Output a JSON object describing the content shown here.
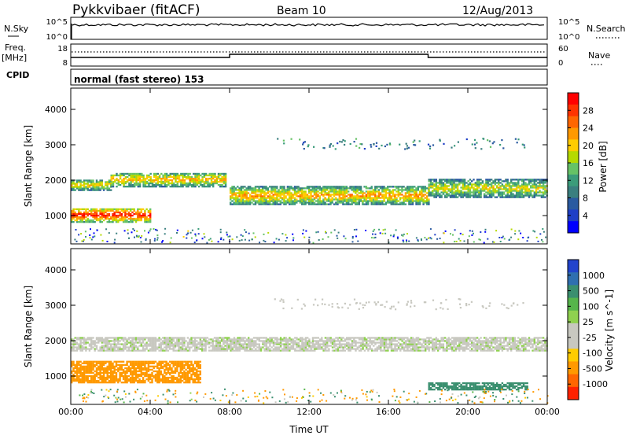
{
  "header": {
    "radar": "Pykkvibaer (fitACF)",
    "beam": "Beam 10",
    "date": "12/Aug/2013"
  },
  "panels": {
    "nsky": {
      "left_label": "N.Sky",
      "left_ticks": [
        "10^5",
        "10^0"
      ],
      "right_ticks": [
        "10^5",
        "10^0"
      ],
      "right_label": "N.Search"
    },
    "freq": {
      "left_label_top": "Freq.",
      "left_label_unit": "[MHz]",
      "left_ticks": [
        "18",
        "8"
      ],
      "right_ticks": [
        "60",
        "0"
      ],
      "right_label": "Nave"
    },
    "cpid": {
      "label": "CPID",
      "text": "normal (fast stereo) 153"
    }
  },
  "chart_data": [
    {
      "type": "heatmap",
      "name": "power",
      "ylabel": "Slant Range [km]",
      "ylim": [
        200,
        4600
      ],
      "yticks": [
        1000,
        2000,
        3000,
        4000
      ],
      "xlim": [
        0,
        24
      ],
      "xticks": [
        "00:00",
        "04:00",
        "08:00",
        "12:00",
        "16:00",
        "20:00",
        "00:00"
      ],
      "colorbar": {
        "label": "Power [dB]",
        "ticks": [
          "28",
          "24",
          "20",
          "16",
          "12",
          "8",
          "4"
        ],
        "colors": [
          "#ff0000",
          "#ff3300",
          "#ff6600",
          "#ff9900",
          "#ffcc00",
          "#b5d900",
          "#66c266",
          "#3b9c7a",
          "#3a7f7f",
          "#2a5aa0",
          "#1f3fc6",
          "#0000ff"
        ]
      },
      "bands": [
        {
          "t0": 0.0,
          "t1": 4.0,
          "r0": 800,
          "r1": 1200,
          "level": 0.95
        },
        {
          "t0": 0.0,
          "t1": 2.0,
          "r0": 1700,
          "r1": 2000,
          "level": 0.65
        },
        {
          "t0": 2.0,
          "t1": 7.8,
          "r0": 1800,
          "r1": 2200,
          "level": 0.7
        },
        {
          "t0": 8.0,
          "t1": 18.0,
          "r0": 1300,
          "r1": 1800,
          "level": 0.72
        },
        {
          "t0": 18.0,
          "t1": 24.0,
          "r0": 1500,
          "r1": 2000,
          "level": 0.6
        }
      ]
    },
    {
      "type": "heatmap",
      "name": "velocity",
      "xlabel": "Time UT",
      "ylabel": "Slant Range [km]",
      "ylim": [
        200,
        4600
      ],
      "yticks": [
        1000,
        2000,
        3000,
        4000
      ],
      "xlim": [
        0,
        24
      ],
      "xticks": [
        "00:00",
        "04:00",
        "08:00",
        "12:00",
        "16:00",
        "20:00",
        "00:00"
      ],
      "colorbar": {
        "label": "Velocity [m s^-1]",
        "ticks": [
          "1000",
          "500",
          "100",
          "25",
          "-25",
          "-100",
          "-500",
          "-1000"
        ],
        "colors": [
          "#2244cc",
          "#2f6fb0",
          "#3a8f6f",
          "#56b54b",
          "#8fd14f",
          "#c8c8c0",
          "#c8c8c0",
          "#ffcc00",
          "#ff9900",
          "#ff6600",
          "#ff2200"
        ]
      },
      "bands": [
        {
          "t0": 0.0,
          "t1": 6.5,
          "r0": 800,
          "r1": 1400,
          "vel": -220
        },
        {
          "t0": 0.0,
          "t1": 24.0,
          "r0": 1700,
          "r1": 2100,
          "vel": 0
        },
        {
          "t0": 18.0,
          "t1": 23.0,
          "r0": 600,
          "r1": 800,
          "vel": 150
        }
      ]
    }
  ]
}
